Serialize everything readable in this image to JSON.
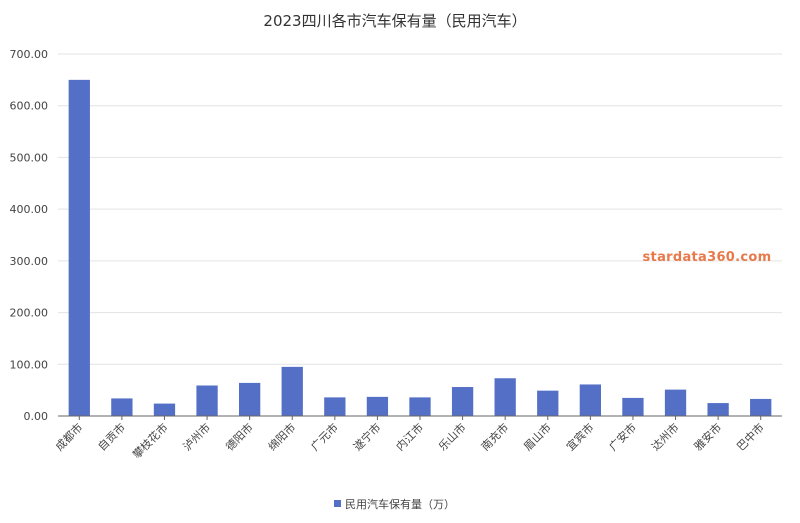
{
  "chart_data": {
    "type": "bar",
    "title": "2023四川各市汽车保有量（民用汽车）",
    "categories": [
      "成都市",
      "自贡市",
      "攀枝花市",
      "泸州市",
      "德阳市",
      "绵阳市",
      "广元市",
      "遂宁市",
      "内江市",
      "乐山市",
      "南充市",
      "眉山市",
      "宜宾市",
      "广安市",
      "达州市",
      "雅安市",
      "巴中市"
    ],
    "series": [
      {
        "name": "民用汽车保有量（万）",
        "values": [
          650,
          34,
          24,
          59,
          64,
          95,
          36,
          37,
          36,
          56,
          73,
          49,
          61,
          35,
          51,
          25,
          33
        ]
      }
    ],
    "yticks": [
      "0.00",
      "100.00",
      "200.00",
      "300.00",
      "400.00",
      "500.00",
      "600.00",
      "700.00"
    ],
    "ylim": [
      0,
      700
    ],
    "grid": true,
    "legend_position": "bottom",
    "bar_color": "#5470c6"
  },
  "watermark": "stardata360.com",
  "watermark_color": "#e8794a"
}
